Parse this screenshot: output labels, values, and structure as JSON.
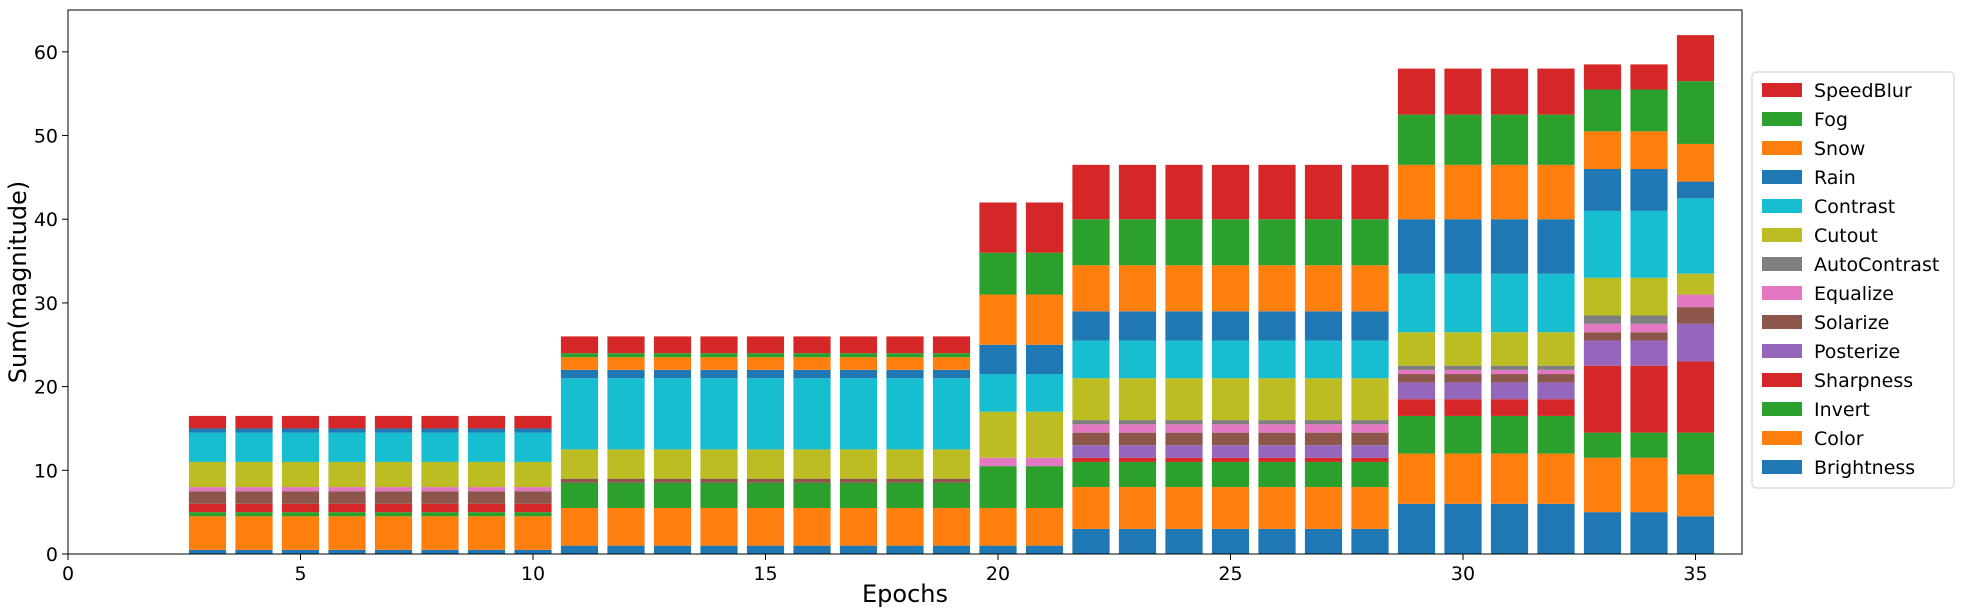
{
  "chart_data": {
    "type": "bar",
    "stacked": true,
    "xlabel": "Epochs",
    "ylabel": "Sum(magnitude)",
    "xlim": [
      0,
      36
    ],
    "ylim": [
      0,
      65
    ],
    "xticks": [
      0,
      5,
      10,
      15,
      20,
      25,
      30,
      35
    ],
    "yticks": [
      0,
      10,
      20,
      30,
      40,
      50,
      60
    ],
    "legend_position": "right",
    "x": [
      3,
      4,
      5,
      6,
      7,
      8,
      9,
      10,
      11,
      12,
      13,
      14,
      15,
      16,
      17,
      18,
      19,
      20,
      21,
      22,
      23,
      24,
      25,
      26,
      27,
      28,
      29,
      30,
      31,
      32,
      33,
      34,
      35
    ],
    "series": [
      {
        "name": "Brightness",
        "color": "#1f77b4",
        "values": [
          0.5,
          0.5,
          0.5,
          0.5,
          0.5,
          0.5,
          0.5,
          0.5,
          1,
          1,
          1,
          1,
          1,
          1,
          1,
          1,
          1,
          1,
          1,
          3,
          3,
          3,
          3,
          3,
          3,
          3,
          6,
          6,
          6,
          6,
          5,
          5,
          4.5
        ]
      },
      {
        "name": "Color",
        "color": "#ff7f0e",
        "values": [
          4,
          4,
          4,
          4,
          4,
          4,
          4,
          4,
          4.5,
          4.5,
          4.5,
          4.5,
          4.5,
          4.5,
          4.5,
          4.5,
          4.5,
          4.5,
          4.5,
          5,
          5,
          5,
          5,
          5,
          5,
          5,
          6,
          6,
          6,
          6,
          6.5,
          6.5,
          5
        ]
      },
      {
        "name": "Invert",
        "color": "#2ca02c",
        "values": [
          0.5,
          0.5,
          0.5,
          0.5,
          0.5,
          0.5,
          0.5,
          0.5,
          3,
          3,
          3,
          3,
          3,
          3,
          3,
          3,
          3,
          5,
          5,
          3,
          3,
          3,
          3,
          3,
          3,
          3,
          4.5,
          4.5,
          4.5,
          4.5,
          3,
          3,
          5
        ]
      },
      {
        "name": "Sharpness",
        "color": "#d62728",
        "values": [
          1,
          1,
          1,
          1,
          1,
          1,
          1,
          1,
          0,
          0,
          0,
          0,
          0,
          0,
          0,
          0,
          0,
          0,
          0,
          0.5,
          0.5,
          0.5,
          0.5,
          0.5,
          0.5,
          0.5,
          2,
          2,
          2,
          2,
          8,
          8,
          8.5
        ]
      },
      {
        "name": "Posterize",
        "color": "#9467bd",
        "values": [
          0,
          0,
          0,
          0,
          0,
          0,
          0,
          0,
          0,
          0,
          0,
          0,
          0,
          0,
          0,
          0,
          0,
          0,
          0,
          1.5,
          1.5,
          1.5,
          1.5,
          1.5,
          1.5,
          1.5,
          2,
          2,
          2,
          2,
          3,
          3,
          4.5
        ]
      },
      {
        "name": "Solarize",
        "color": "#8c564b",
        "values": [
          1.5,
          1.5,
          1.5,
          1.5,
          1.5,
          1.5,
          1.5,
          1.5,
          0.5,
          0.5,
          0.5,
          0.5,
          0.5,
          0.5,
          0.5,
          0.5,
          0.5,
          0,
          0,
          1.5,
          1.5,
          1.5,
          1.5,
          1.5,
          1.5,
          1.5,
          1,
          1,
          1,
          1,
          1,
          1,
          2
        ]
      },
      {
        "name": "Equalize",
        "color": "#e377c2",
        "values": [
          0.5,
          0.5,
          0.5,
          0.5,
          0.5,
          0.5,
          0.5,
          0.5,
          0,
          0,
          0,
          0,
          0,
          0,
          0,
          0,
          0,
          1,
          1,
          1,
          1,
          1,
          1,
          1,
          1,
          1,
          0.5,
          0.5,
          0.5,
          0.5,
          1,
          1,
          1.5
        ]
      },
      {
        "name": "AutoContrast",
        "color": "#7f7f7f",
        "values": [
          0,
          0,
          0,
          0,
          0,
          0,
          0,
          0,
          0,
          0,
          0,
          0,
          0,
          0,
          0,
          0,
          0,
          0,
          0,
          0.5,
          0.5,
          0.5,
          0.5,
          0.5,
          0.5,
          0.5,
          0.5,
          0.5,
          0.5,
          0.5,
          1,
          1,
          0
        ]
      },
      {
        "name": "Cutout",
        "color": "#bcbd22",
        "values": [
          3,
          3,
          3,
          3,
          3,
          3,
          3,
          3,
          3.5,
          3.5,
          3.5,
          3.5,
          3.5,
          3.5,
          3.5,
          3.5,
          3.5,
          5.5,
          5.5,
          5,
          5,
          5,
          5,
          5,
          5,
          5,
          4,
          4,
          4,
          4,
          4.5,
          4.5,
          2.5
        ]
      },
      {
        "name": "Contrast",
        "color": "#17becf",
        "values": [
          3.5,
          3.5,
          3.5,
          3.5,
          3.5,
          3.5,
          3.5,
          3.5,
          8.5,
          8.5,
          8.5,
          8.5,
          8.5,
          8.5,
          8.5,
          8.5,
          8.5,
          4.5,
          4.5,
          4.5,
          4.5,
          4.5,
          4.5,
          4.5,
          4.5,
          4.5,
          7,
          7,
          7,
          7,
          8,
          8,
          9
        ]
      },
      {
        "name": "Rain",
        "color": "#1f77b4",
        "values": [
          0.5,
          0.5,
          0.5,
          0.5,
          0.5,
          0.5,
          0.5,
          0.5,
          1,
          1,
          1,
          1,
          1,
          1,
          1,
          1,
          1,
          3.5,
          3.5,
          3.5,
          3.5,
          3.5,
          3.5,
          3.5,
          3.5,
          3.5,
          6.5,
          6.5,
          6.5,
          6.5,
          5,
          5,
          2
        ]
      },
      {
        "name": "Snow",
        "color": "#ff7f0e",
        "values": [
          0,
          0,
          0,
          0,
          0,
          0,
          0,
          0,
          1.5,
          1.5,
          1.5,
          1.5,
          1.5,
          1.5,
          1.5,
          1.5,
          1.5,
          6,
          6,
          5.5,
          5.5,
          5.5,
          5.5,
          5.5,
          5.5,
          5.5,
          6.5,
          6.5,
          6.5,
          6.5,
          4.5,
          4.5,
          4.5
        ]
      },
      {
        "name": "Fog",
        "color": "#2ca02c",
        "values": [
          0,
          0,
          0,
          0,
          0,
          0,
          0,
          0,
          0.5,
          0.5,
          0.5,
          0.5,
          0.5,
          0.5,
          0.5,
          0.5,
          0.5,
          5,
          5,
          5.5,
          5.5,
          5.5,
          5.5,
          5.5,
          5.5,
          5.5,
          6,
          6,
          6,
          6,
          5,
          5,
          7.5
        ]
      },
      {
        "name": "SpeedBlur",
        "color": "#d62728",
        "values": [
          1.5,
          1.5,
          1.5,
          1.5,
          1.5,
          1.5,
          1.5,
          1.5,
          2,
          2,
          2,
          2,
          2,
          2,
          2,
          2,
          2,
          6,
          6,
          6.5,
          6.5,
          6.5,
          6.5,
          6.5,
          6.5,
          6.5,
          5.5,
          5.5,
          5.5,
          5.5,
          3,
          3,
          5.5
        ]
      }
    ]
  }
}
